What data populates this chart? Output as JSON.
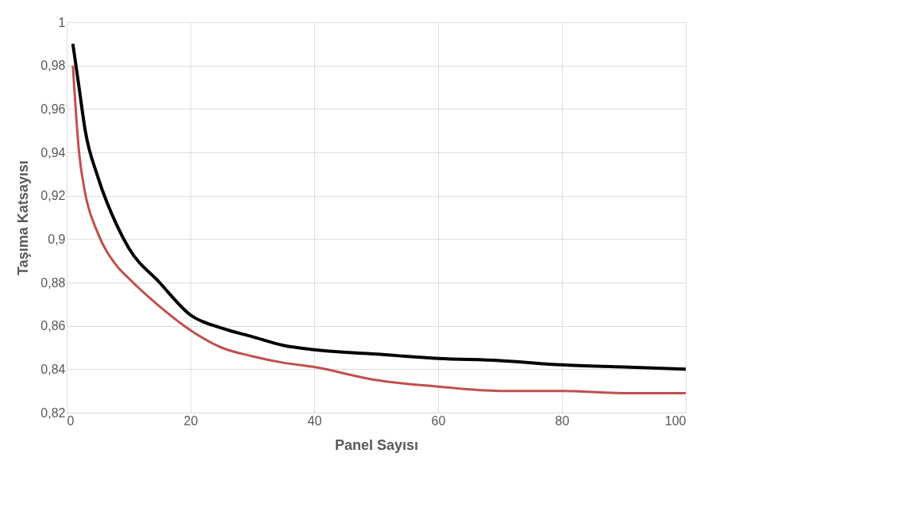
{
  "chart_data": {
    "type": "line",
    "xlabel": "Panel Sayısı",
    "ylabel": "Taşıma Katsayısı",
    "x": [
      1,
      2,
      3,
      5,
      8,
      10,
      15,
      20,
      25,
      30,
      35,
      40,
      50,
      60,
      70,
      80,
      90,
      100
    ],
    "series": [
      {
        "color": "#000000",
        "values": [
          0.99,
          0.97,
          0.95,
          0.929,
          0.907,
          0.896,
          0.88,
          0.865,
          0.859,
          0.855,
          0.851,
          0.849,
          0.847,
          0.845,
          0.844,
          0.842,
          0.841,
          0.84
        ]
      },
      {
        "color": "#c0504d",
        "values": [
          0.98,
          0.94,
          0.921,
          0.903,
          0.888,
          0.882,
          0.869,
          0.858,
          0.85,
          0.846,
          0.843,
          0.841,
          0.835,
          0.832,
          0.83,
          0.83,
          0.829,
          0.829
        ]
      }
    ],
    "xlim": [
      0,
      100
    ],
    "xticks": [
      0,
      20,
      40,
      60,
      80,
      100
    ],
    "ylim": [
      0.82,
      1
    ],
    "yticks": [
      {
        "value": 0.82,
        "label": "0,82"
      },
      {
        "value": 0.84,
        "label": "0,84"
      },
      {
        "value": 0.86,
        "label": "0,86"
      },
      {
        "value": 0.88,
        "label": "0,88"
      },
      {
        "value": 0.9,
        "label": "0,9"
      },
      {
        "value": 0.92,
        "label": "0,92"
      },
      {
        "value": 0.94,
        "label": "0,94"
      },
      {
        "value": 0.96,
        "label": "0,96"
      },
      {
        "value": 0.98,
        "label": "0,98"
      },
      {
        "value": 1,
        "label": "1"
      }
    ],
    "grid": true,
    "marker": "none",
    "line_style": "solid"
  }
}
